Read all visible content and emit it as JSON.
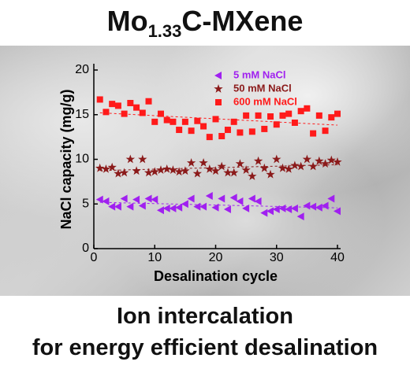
{
  "title": [
    "Mo",
    "1.33",
    "C-MXene"
  ],
  "caption": [
    "Ion intercalation",
    "for energy efficient desalination"
  ],
  "chart_data": {
    "type": "scatter",
    "x_label": "Desalination cycle",
    "y_label": "NaCl capacity (mg/g)",
    "xlim": [
      0,
      40
    ],
    "xticks": [
      0,
      10,
      20,
      30,
      40
    ],
    "ylim": [
      0,
      20
    ],
    "yticks": [
      0,
      5,
      10,
      15,
      20
    ],
    "x": [
      1,
      2,
      3,
      4,
      5,
      6,
      7,
      8,
      9,
      10,
      11,
      12,
      13,
      14,
      15,
      16,
      17,
      18,
      19,
      20,
      21,
      22,
      23,
      24,
      25,
      26,
      27,
      28,
      29,
      30,
      31,
      32,
      33,
      34,
      35,
      36,
      37,
      38,
      39,
      40
    ],
    "trend": true,
    "series": [
      {
        "name": "5 mM NaCl",
        "color": "#a020f0",
        "marker": "triangle-left",
        "values": [
          5.5,
          5.3,
          4.7,
          4.7,
          5.6,
          4.7,
          5.5,
          4.8,
          5.6,
          5.5,
          4.3,
          4.5,
          4.5,
          4.6,
          5.0,
          5.6,
          4.7,
          4.7,
          5.9,
          4.6,
          5.6,
          4.4,
          5.7,
          5.3,
          4.5,
          5.6,
          5.3,
          4.0,
          4.2,
          4.4,
          4.5,
          4.4,
          4.5,
          3.6,
          4.8,
          4.7,
          4.6,
          4.8,
          5.6,
          4.2
        ]
      },
      {
        "name": "50 mM NaCl",
        "color": "#8b1a1a",
        "marker": "star",
        "values": [
          9.0,
          8.9,
          9.1,
          8.4,
          8.5,
          10.0,
          8.7,
          10.0,
          8.5,
          8.6,
          8.8,
          8.9,
          8.8,
          8.6,
          8.7,
          9.6,
          8.4,
          9.6,
          8.9,
          8.7,
          9.2,
          8.5,
          8.5,
          9.5,
          8.8,
          8.1,
          9.8,
          9.0,
          8.3,
          10.0,
          9.0,
          8.9,
          9.3,
          9.2,
          10.0,
          9.2,
          9.8,
          9.5,
          9.9,
          9.7
        ]
      },
      {
        "name": "600 mM NaCl",
        "color": "#ff1a1a",
        "marker": "square",
        "values": [
          16.7,
          15.3,
          16.2,
          16.0,
          15.1,
          16.3,
          15.8,
          15.2,
          16.5,
          14.2,
          15.1,
          14.4,
          14.2,
          13.3,
          14.2,
          13.2,
          14.3,
          13.7,
          12.5,
          14.5,
          12.6,
          13.3,
          14.2,
          13.0,
          14.9,
          13.1,
          14.9,
          13.4,
          14.8,
          13.9,
          14.9,
          15.1,
          14.1,
          15.4,
          15.7,
          12.9,
          14.9,
          13.2,
          14.7,
          15.1
        ]
      }
    ]
  }
}
